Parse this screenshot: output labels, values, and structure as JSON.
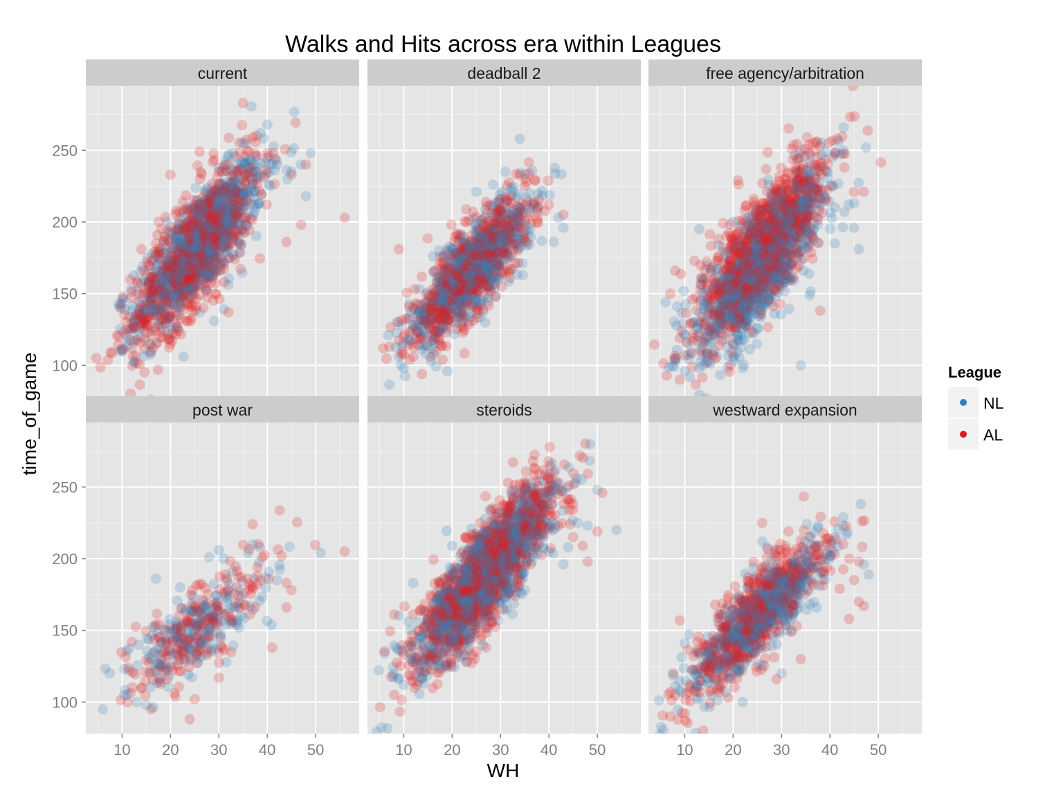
{
  "chart_data": {
    "type": "scatter",
    "title": "Walks and Hits across era within Leagues",
    "xlabel": "WH",
    "ylabel": "time_of_game",
    "xlim": [
      2.5,
      59
    ],
    "ylim": [
      78,
      295
    ],
    "x_ticks": [
      10,
      20,
      30,
      40,
      50
    ],
    "y_ticks": [
      100,
      150,
      200,
      250
    ],
    "grid": true,
    "legend": {
      "title": "League",
      "placement": "right",
      "entries": [
        {
          "name": "NL",
          "color": "#377EB8"
        },
        {
          "name": "AL",
          "color": "#E41A1C"
        }
      ]
    },
    "panels": [
      {
        "title": "current",
        "series": [
          {
            "name": "NL",
            "model": {
              "x_center": 26,
              "x_sd": 6.5,
              "intercept": 90,
              "slope": 3.6,
              "noise": 17,
              "n": 900
            },
            "points": [
              [
                42,
                240
              ],
              [
                45,
                235
              ],
              [
                47,
                240
              ],
              [
                48,
                218
              ],
              [
                49,
                248
              ],
              [
                33,
                248
              ],
              [
                38,
                232
              ],
              [
                20,
                128
              ],
              [
                17,
                115
              ],
              [
                29,
                131
              ],
              [
                31,
                139
              ],
              [
                13,
                152
              ],
              [
                10,
                146
              ]
            ]
          },
          {
            "name": "AL",
            "model": {
              "x_center": 25,
              "x_sd": 6.5,
              "intercept": 82,
              "slope": 3.9,
              "noise": 20,
              "n": 900
            },
            "points": [
              [
                35,
                283
              ],
              [
                37,
                259
              ],
              [
                26,
                249
              ],
              [
                20,
                233
              ],
              [
                40,
                248
              ],
              [
                48,
                240
              ],
              [
                56,
                203
              ],
              [
                44,
                186
              ],
              [
                47,
                198
              ],
              [
                45,
                233
              ],
              [
                32,
                137
              ],
              [
                20,
                115
              ],
              [
                10,
                111
              ],
              [
                12,
                112
              ],
              [
                9,
                121
              ],
              [
                14,
                181
              ],
              [
                16,
                161
              ]
            ]
          }
        ]
      },
      {
        "title": "deadball 2",
        "series": [
          {
            "name": "NL",
            "model": {
              "x_center": 24,
              "x_sd": 6,
              "intercept": 85,
              "slope": 3.4,
              "noise": 14,
              "n": 750
            },
            "points": [
              [
                34,
                258
              ],
              [
                31,
                235
              ],
              [
                25,
                221
              ],
              [
                36,
                210
              ],
              [
                42,
                203
              ],
              [
                43,
                196
              ],
              [
                41,
                186
              ],
              [
                19,
                96
              ],
              [
                10,
                98
              ],
              [
                9,
                106
              ],
              [
                20,
                182
              ],
              [
                16,
                176
              ]
            ]
          },
          {
            "name": "AL",
            "model": {
              "x_center": 24,
              "x_sd": 6,
              "intercept": 82,
              "slope": 3.5,
              "noise": 16,
              "n": 750
            },
            "points": [
              [
                9,
                181
              ],
              [
                7,
                113
              ],
              [
                10,
                120
              ],
              [
                27,
                214
              ],
              [
                40,
                212
              ],
              [
                43,
                205
              ],
              [
                36,
                206
              ],
              [
                12,
                106
              ],
              [
                18,
                104
              ],
              [
                28,
                175
              ]
            ]
          }
        ]
      },
      {
        "title": "free agency/arbitration",
        "series": [
          {
            "name": "NL",
            "model": {
              "x_center": 26,
              "x_sd": 6.5,
              "intercept": 78,
              "slope": 3.6,
              "noise": 18,
              "n": 1100
            },
            "points": [
              [
                6,
                144
              ],
              [
                8,
                103
              ],
              [
                11,
                92
              ],
              [
                10,
                96
              ],
              [
                22,
                98
              ],
              [
                34,
                100
              ],
              [
                41,
                185
              ],
              [
                46,
                181
              ],
              [
                45,
                196
              ],
              [
                43,
                207
              ],
              [
                13,
                195
              ],
              [
                20,
                200
              ],
              [
                45,
                213
              ]
            ]
          },
          {
            "name": "AL",
            "model": {
              "x_center": 26,
              "x_sd": 6.5,
              "intercept": 82,
              "slope": 3.8,
              "noise": 20,
              "n": 1100
            },
            "points": [
              [
                41,
                247
              ],
              [
                43,
                238
              ],
              [
                39,
                236
              ],
              [
                33,
                235
              ],
              [
                26,
                227
              ],
              [
                12,
                173
              ],
              [
                8,
                166
              ],
              [
                7,
                150
              ],
              [
                9,
                119
              ],
              [
                10,
                107
              ],
              [
                9,
                90
              ],
              [
                38,
                138
              ],
              [
                45,
                221
              ],
              [
                47,
                221
              ],
              [
                21,
                229
              ]
            ]
          }
        ]
      },
      {
        "title": "post war",
        "series": [
          {
            "name": "NL",
            "model": {
              "x_center": 25,
              "x_sd": 7,
              "intercept": 90,
              "slope": 2.4,
              "noise": 13,
              "n": 210
            },
            "points": [
              [
                6,
                95
              ],
              [
                51,
                204
              ],
              [
                17,
                186
              ],
              [
                30,
                206
              ],
              [
                28,
                201
              ],
              [
                31,
                200
              ],
              [
                36,
                204
              ],
              [
                37,
                210
              ],
              [
                42,
                185
              ],
              [
                22,
                180
              ],
              [
                11,
                105
              ],
              [
                13,
                100
              ],
              [
                15,
                98
              ]
            ]
          },
          {
            "name": "AL",
            "model": {
              "x_center": 26,
              "x_sd": 7,
              "intercept": 88,
              "slope": 2.5,
              "noise": 14,
              "n": 210
            },
            "points": [
              [
                37,
                224
              ],
              [
                56,
                205
              ],
              [
                43,
                202
              ],
              [
                44,
                183
              ],
              [
                45,
                178
              ],
              [
                44,
                166
              ],
              [
                41,
                138
              ],
              [
                30,
                117
              ],
              [
                25,
                102
              ],
              [
                24,
                88
              ],
              [
                16,
                95
              ],
              [
                12,
                142
              ],
              [
                38,
                188
              ],
              [
                36,
                186
              ],
              [
                21,
                104
              ]
            ]
          }
        ]
      },
      {
        "title": "steroids",
        "series": [
          {
            "name": "NL",
            "model": {
              "x_center": 27,
              "x_sd": 7,
              "intercept": 88,
              "slope": 3.7,
              "noise": 16,
              "n": 1200
            },
            "points": [
              [
                6,
                134
              ],
              [
                9,
                116
              ],
              [
                10,
                112
              ],
              [
                50,
                248
              ],
              [
                54,
                220
              ],
              [
                46,
                225
              ],
              [
                48,
                223
              ],
              [
                44,
                208
              ],
              [
                43,
                196
              ],
              [
                32,
                238
              ],
              [
                39,
                215
              ],
              [
                33,
                220
              ],
              [
                40,
                205
              ],
              [
                19,
                124
              ]
            ]
          },
          {
            "name": "AL",
            "model": {
              "x_center": 27,
              "x_sd": 7,
              "intercept": 88,
              "slope": 3.8,
              "noise": 17,
              "n": 1200
            },
            "points": [
              [
                39,
                262
              ],
              [
                34,
                252
              ],
              [
                42,
                245
              ],
              [
                51,
                246
              ],
              [
                50,
                219
              ],
              [
                47,
                209
              ],
              [
                48,
                198
              ],
              [
                45,
                215
              ],
              [
                8,
                105
              ],
              [
                8,
                161
              ],
              [
                12,
                114
              ],
              [
                28,
                226
              ],
              [
                45,
                238
              ],
              [
                20,
                176
              ]
            ]
          }
        ]
      },
      {
        "title": "westward expansion",
        "series": [
          {
            "name": "NL",
            "model": {
              "x_center": 25,
              "x_sd": 7,
              "intercept": 78,
              "slope": 3.2,
              "noise": 13,
              "n": 650
            },
            "points": [
              [
                41,
                215
              ],
              [
                48,
                189
              ],
              [
                47,
                196
              ],
              [
                27,
                208
              ],
              [
                28,
                200
              ],
              [
                22,
                100
              ],
              [
                10,
                141
              ],
              [
                12,
                109
              ],
              [
                30,
                120
              ],
              [
                36,
                215
              ],
              [
                26,
                212
              ]
            ]
          },
          {
            "name": "AL",
            "model": {
              "x_center": 25,
              "x_sd": 7,
              "intercept": 78,
              "slope": 3.3,
              "noise": 15,
              "n": 650
            },
            "points": [
              [
                26,
                225
              ],
              [
                7,
                90
              ],
              [
                10,
                92
              ],
              [
                8,
                105
              ],
              [
                37,
                208
              ],
              [
                41,
                203
              ],
              [
                44,
                200
              ],
              [
                46,
                198
              ],
              [
                45,
                185
              ],
              [
                46,
                170
              ],
              [
                47,
                167
              ],
              [
                44,
                158
              ],
              [
                42,
                179
              ],
              [
                34,
                130
              ],
              [
                29,
                116
              ],
              [
                19,
                103
              ],
              [
                27,
                201
              ],
              [
                9,
                157
              ]
            ]
          }
        ]
      }
    ]
  }
}
